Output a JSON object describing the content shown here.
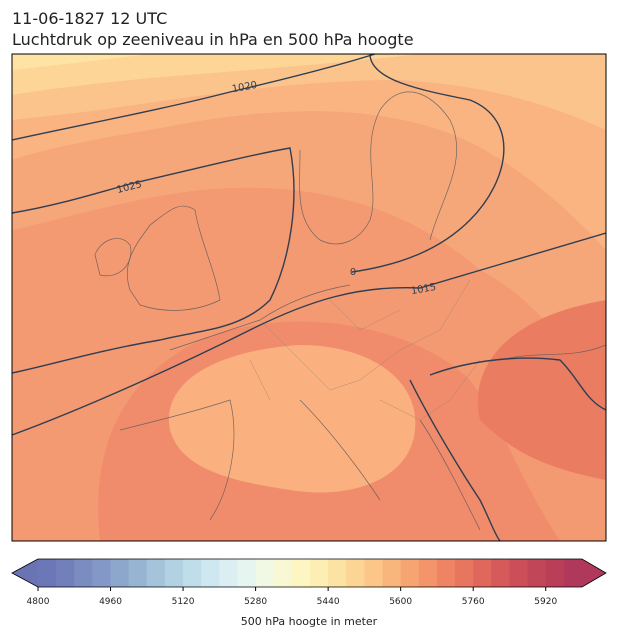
{
  "header": {
    "date": "11-06-1827 12 UTC",
    "title": "Luchtdruk op zeeniveau in hPa en 500 hPa hoogte"
  },
  "map": {
    "isobar_labels": [
      "1020",
      "1025",
      "1015",
      "0"
    ]
  },
  "colorbar": {
    "lim": [
      4800,
      6000
    ],
    "ticks": [
      4800,
      4960,
      5120,
      5280,
      5440,
      5600,
      5760,
      5920
    ],
    "label": "500 hPa hoogte in meter",
    "colors": [
      "#6b77b6",
      "#717fba",
      "#7a8cc0",
      "#8398c6",
      "#8ca6cc",
      "#97b5d3",
      "#a4c4dc",
      "#b2d1e3",
      "#c0ddea",
      "#cee7f0",
      "#dbeff3",
      "#e7f5f0",
      "#f1f8e4",
      "#f8f9d4",
      "#fdf6c3",
      "#fdeeb3",
      "#fde3a3",
      "#fcd595",
      "#fbc688",
      "#f9b67c",
      "#f6a572",
      "#f3946a",
      "#ee8464",
      "#e8765f",
      "#e0675c",
      "#d65a59",
      "#cb4e58",
      "#c14658",
      "#b93f59",
      "#b0395b"
    ],
    "under": "#6a74b4",
    "over": "#b0395b"
  }
}
